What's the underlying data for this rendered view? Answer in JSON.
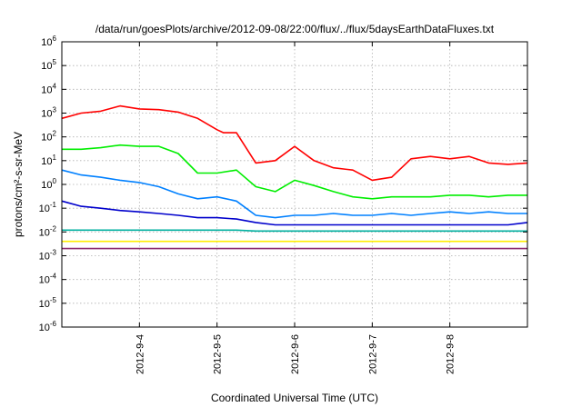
{
  "chart_data": {
    "type": "line",
    "title": "/data/run/goesPlots/archive/2012-09-08/22:00/flux/../flux/5daysEarthDataFluxes.txt",
    "xlabel": "Coordinated Universal Time (UTC)",
    "ylabel": "protons/cm²-s-sr-MeV",
    "x_unit": "days",
    "xlim": [
      "2012-09-03 00:00",
      "2012-09-09 00:00"
    ],
    "ylim": [
      1e-06,
      1000000.0
    ],
    "yscale": "log",
    "grid": true,
    "legend": "none",
    "x_ticks": [
      {
        "label": "2012-9-4",
        "value": "2012-09-04 00:00"
      },
      {
        "label": "2012-9-5",
        "value": "2012-09-05 00:00"
      },
      {
        "label": "2012-9-6",
        "value": "2012-09-06 00:00"
      },
      {
        "label": "2012-9-7",
        "value": "2012-09-07 00:00"
      },
      {
        "label": "2012-9-8",
        "value": "2012-09-08 00:00"
      }
    ],
    "y_ticks": [
      {
        "base": "10",
        "exp": "-6",
        "value": 1e-06
      },
      {
        "base": "10",
        "exp": "-5",
        "value": 1e-05
      },
      {
        "base": "10",
        "exp": "-4",
        "value": 0.0001
      },
      {
        "base": "10",
        "exp": "-3",
        "value": 0.001
      },
      {
        "base": "10",
        "exp": "-2",
        "value": 0.01
      },
      {
        "base": "10",
        "exp": "-1",
        "value": 0.1
      },
      {
        "base": "10",
        "exp": "0",
        "value": 1.0
      },
      {
        "base": "10",
        "exp": "1",
        "value": 10.0
      },
      {
        "base": "10",
        "exp": "2",
        "value": 100.0
      },
      {
        "base": "10",
        "exp": "3",
        "value": 1000.0
      },
      {
        "base": "10",
        "exp": "4",
        "value": 10000.0
      },
      {
        "base": "10",
        "exp": "5",
        "value": 100000.0
      },
      {
        "base": "10",
        "exp": "6",
        "value": 1000000.0
      }
    ],
    "series": [
      {
        "color": "#ff0000",
        "x": [
          "2012-09-03 00:00",
          "2012-09-03 06:00",
          "2012-09-03 12:00",
          "2012-09-03 18:00",
          "2012-09-04 00:00",
          "2012-09-04 06:00",
          "2012-09-04 12:00",
          "2012-09-04 18:00",
          "2012-09-05 00:00",
          "2012-09-05 02:00",
          "2012-09-05 06:00",
          "2012-09-05 12:00",
          "2012-09-05 18:00",
          "2012-09-06 00:00",
          "2012-09-06 06:00",
          "2012-09-06 12:00",
          "2012-09-06 18:00",
          "2012-09-07 00:00",
          "2012-09-07 06:00",
          "2012-09-07 12:00",
          "2012-09-07 18:00",
          "2012-09-08 00:00",
          "2012-09-08 06:00",
          "2012-09-08 12:00",
          "2012-09-08 18:00",
          "2012-09-09 00:00"
        ],
        "y": [
          600,
          1000,
          1200,
          2000,
          1500,
          1400,
          1100,
          600,
          200,
          150,
          150,
          8,
          10,
          40,
          10,
          5,
          4,
          1.5,
          2,
          12,
          15,
          12,
          15,
          8,
          7,
          8
        ]
      },
      {
        "color": "#00ee00",
        "x": [
          "2012-09-03 00:00",
          "2012-09-03 06:00",
          "2012-09-03 12:00",
          "2012-09-03 18:00",
          "2012-09-04 00:00",
          "2012-09-04 06:00",
          "2012-09-04 12:00",
          "2012-09-04 18:00",
          "2012-09-05 00:00",
          "2012-09-05 06:00",
          "2012-09-05 12:00",
          "2012-09-05 18:00",
          "2012-09-06 00:00",
          "2012-09-06 06:00",
          "2012-09-06 12:00",
          "2012-09-06 18:00",
          "2012-09-07 00:00",
          "2012-09-07 06:00",
          "2012-09-07 12:00",
          "2012-09-07 18:00",
          "2012-09-08 00:00",
          "2012-09-08 06:00",
          "2012-09-08 12:00",
          "2012-09-08 18:00",
          "2012-09-09 00:00"
        ],
        "y": [
          30,
          30,
          35,
          45,
          40,
          40,
          20,
          3,
          3,
          4,
          0.8,
          0.5,
          1.5,
          0.9,
          0.5,
          0.3,
          0.25,
          0.3,
          0.3,
          0.3,
          0.35,
          0.35,
          0.3,
          0.35,
          0.35
        ]
      },
      {
        "color": "#0080ff",
        "x": [
          "2012-09-03 00:00",
          "2012-09-03 06:00",
          "2012-09-03 12:00",
          "2012-09-03 18:00",
          "2012-09-04 00:00",
          "2012-09-04 06:00",
          "2012-09-04 12:00",
          "2012-09-04 18:00",
          "2012-09-05 00:00",
          "2012-09-05 06:00",
          "2012-09-05 12:00",
          "2012-09-05 18:00",
          "2012-09-06 00:00",
          "2012-09-06 06:00",
          "2012-09-06 12:00",
          "2012-09-06 18:00",
          "2012-09-07 00:00",
          "2012-09-07 06:00",
          "2012-09-07 12:00",
          "2012-09-07 18:00",
          "2012-09-08 00:00",
          "2012-09-08 06:00",
          "2012-09-08 12:00",
          "2012-09-08 18:00",
          "2012-09-09 00:00"
        ],
        "y": [
          4,
          2.5,
          2,
          1.5,
          1.2,
          0.8,
          0.4,
          0.25,
          0.3,
          0.2,
          0.05,
          0.04,
          0.05,
          0.05,
          0.06,
          0.05,
          0.05,
          0.06,
          0.05,
          0.06,
          0.07,
          0.06,
          0.07,
          0.06,
          0.06
        ]
      },
      {
        "color": "#0000cc",
        "x": [
          "2012-09-03 00:00",
          "2012-09-03 06:00",
          "2012-09-03 12:00",
          "2012-09-03 18:00",
          "2012-09-04 00:00",
          "2012-09-04 06:00",
          "2012-09-04 12:00",
          "2012-09-04 18:00",
          "2012-09-05 00:00",
          "2012-09-05 06:00",
          "2012-09-05 12:00",
          "2012-09-05 18:00",
          "2012-09-06 00:00",
          "2012-09-06 06:00",
          "2012-09-06 12:00",
          "2012-09-06 18:00",
          "2012-09-07 00:00",
          "2012-09-07 06:00",
          "2012-09-07 12:00",
          "2012-09-07 18:00",
          "2012-09-08 00:00",
          "2012-09-08 06:00",
          "2012-09-08 12:00",
          "2012-09-08 18:00",
          "2012-09-09 00:00"
        ],
        "y": [
          0.2,
          0.12,
          0.1,
          0.08,
          0.07,
          0.06,
          0.05,
          0.04,
          0.04,
          0.035,
          0.025,
          0.02,
          0.02,
          0.02,
          0.02,
          0.02,
          0.02,
          0.02,
          0.02,
          0.02,
          0.02,
          0.02,
          0.02,
          0.02,
          0.025
        ]
      },
      {
        "color": "#00b0a0",
        "x": [
          "2012-09-03 00:00",
          "2012-09-03 06:00",
          "2012-09-03 12:00",
          "2012-09-03 18:00",
          "2012-09-04 00:00",
          "2012-09-04 06:00",
          "2012-09-04 12:00",
          "2012-09-04 18:00",
          "2012-09-05 00:00",
          "2012-09-05 06:00",
          "2012-09-05 12:00",
          "2012-09-05 18:00",
          "2012-09-06 00:00",
          "2012-09-06 06:00",
          "2012-09-06 12:00",
          "2012-09-06 18:00",
          "2012-09-07 00:00",
          "2012-09-07 06:00",
          "2012-09-07 12:00",
          "2012-09-07 18:00",
          "2012-09-08 00:00",
          "2012-09-08 06:00",
          "2012-09-08 12:00",
          "2012-09-08 18:00",
          "2012-09-09 00:00"
        ],
        "y": [
          0.012,
          0.012,
          0.012,
          0.012,
          0.012,
          0.012,
          0.012,
          0.012,
          0.012,
          0.012,
          0.011,
          0.011,
          0.011,
          0.011,
          0.011,
          0.011,
          0.011,
          0.011,
          0.011,
          0.011,
          0.011,
          0.011,
          0.011,
          0.011,
          0.011
        ]
      },
      {
        "color": "#ffee00",
        "x": [
          "2012-09-03 00:00",
          "2012-09-03 06:00",
          "2012-09-03 12:00",
          "2012-09-03 18:00",
          "2012-09-04 00:00",
          "2012-09-04 06:00",
          "2012-09-04 12:00",
          "2012-09-04 18:00",
          "2012-09-05 00:00",
          "2012-09-05 06:00",
          "2012-09-05 12:00",
          "2012-09-05 18:00",
          "2012-09-06 00:00",
          "2012-09-06 06:00",
          "2012-09-06 12:00",
          "2012-09-06 18:00",
          "2012-09-07 00:00",
          "2012-09-07 06:00",
          "2012-09-07 12:00",
          "2012-09-07 18:00",
          "2012-09-08 00:00",
          "2012-09-08 06:00",
          "2012-09-08 12:00",
          "2012-09-08 18:00",
          "2012-09-09 00:00"
        ],
        "y": [
          0.004,
          0.004,
          0.004,
          0.004,
          0.004,
          0.004,
          0.004,
          0.004,
          0.004,
          0.004,
          0.004,
          0.004,
          0.004,
          0.004,
          0.004,
          0.004,
          0.004,
          0.004,
          0.004,
          0.004,
          0.004,
          0.004,
          0.004,
          0.004,
          0.004
        ]
      },
      {
        "color": "#8b2a6e",
        "x": [
          "2012-09-03 00:00",
          "2012-09-03 06:00",
          "2012-09-03 12:00",
          "2012-09-03 18:00",
          "2012-09-04 00:00",
          "2012-09-04 06:00",
          "2012-09-04 12:00",
          "2012-09-04 18:00",
          "2012-09-05 00:00",
          "2012-09-05 06:00",
          "2012-09-05 12:00",
          "2012-09-05 18:00",
          "2012-09-06 00:00",
          "2012-09-06 06:00",
          "2012-09-06 12:00",
          "2012-09-06 18:00",
          "2012-09-07 00:00",
          "2012-09-07 06:00",
          "2012-09-07 12:00",
          "2012-09-07 18:00",
          "2012-09-08 00:00",
          "2012-09-08 06:00",
          "2012-09-08 12:00",
          "2012-09-08 18:00",
          "2012-09-09 00:00"
        ],
        "y": [
          0.002,
          0.002,
          0.002,
          0.002,
          0.002,
          0.002,
          0.002,
          0.002,
          0.002,
          0.002,
          0.002,
          0.002,
          0.002,
          0.002,
          0.002,
          0.002,
          0.002,
          0.002,
          0.002,
          0.002,
          0.002,
          0.002,
          0.002,
          0.002,
          0.002
        ]
      }
    ]
  }
}
